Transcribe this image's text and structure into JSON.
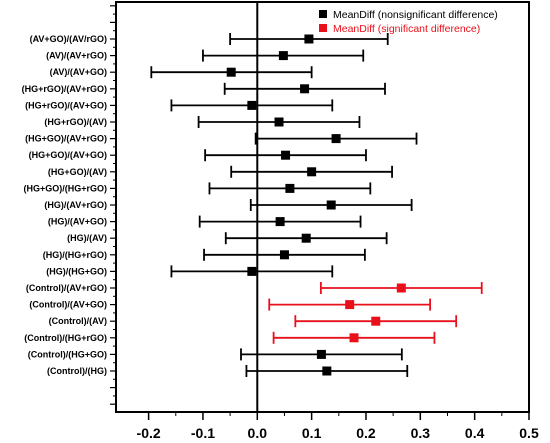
{
  "chart_data": {
    "type": "scatter",
    "subtype": "forest-plot",
    "title": "",
    "xlabel": "",
    "ylabel": "",
    "xlim": [
      -0.26,
      0.5
    ],
    "x_ticks": [
      -0.2,
      -0.1,
      0.0,
      0.1,
      0.2,
      0.3,
      0.4,
      0.5
    ],
    "x_tick_labels": [
      "-0.2",
      "-0.1",
      "0.0",
      "0.1",
      "0.2",
      "0.3",
      "0.4",
      "0.5"
    ],
    "zero_line": 0.0,
    "grid": false,
    "legend_position": "top-right",
    "legend": [
      {
        "key": "nonsig",
        "label": "MeanDiff (nonsignificant difference)",
        "color": "#000000"
      },
      {
        "key": "sig",
        "label": "MeanDiff (significant difference)",
        "color": "#e8111b"
      }
    ],
    "rows": [
      {
        "label": "(AV+GO)/(AV/rGO)",
        "mean": 0.095,
        "lower": -0.05,
        "upper": 0.24,
        "group": "nonsig"
      },
      {
        "label": "(AV)/(AV+rGO)",
        "mean": 0.048,
        "lower": -0.1,
        "upper": 0.195,
        "group": "nonsig"
      },
      {
        "label": "(AV)/(AV+GO)",
        "mean": -0.048,
        "lower": -0.195,
        "upper": 0.1,
        "group": "nonsig"
      },
      {
        "label": "(HG+rGO)/(AV+rGO)",
        "mean": 0.087,
        "lower": -0.06,
        "upper": 0.235,
        "group": "nonsig"
      },
      {
        "label": "(HG+rGO)/(AV+GO)",
        "mean": -0.01,
        "lower": -0.158,
        "upper": 0.138,
        "group": "nonsig"
      },
      {
        "label": "(HG+rGO)/(AV)",
        "mean": 0.04,
        "lower": -0.108,
        "upper": 0.188,
        "group": "nonsig"
      },
      {
        "label": "(HG+GO)/(AV+rGO)",
        "mean": 0.145,
        "lower": -0.003,
        "upper": 0.293,
        "group": "nonsig"
      },
      {
        "label": "(HG+GO)/(AV+GO)",
        "mean": 0.052,
        "lower": -0.096,
        "upper": 0.2,
        "group": "nonsig"
      },
      {
        "label": "(HG+GO)/(AV)",
        "mean": 0.1,
        "lower": -0.048,
        "upper": 0.248,
        "group": "nonsig"
      },
      {
        "label": "(HG+GO)/(HG+rGO)",
        "mean": 0.06,
        "lower": -0.088,
        "upper": 0.208,
        "group": "nonsig"
      },
      {
        "label": "(HG)/(AV+rGO)",
        "mean": 0.136,
        "lower": -0.012,
        "upper": 0.284,
        "group": "nonsig"
      },
      {
        "label": "(HG)/(AV+GO)",
        "mean": 0.042,
        "lower": -0.106,
        "upper": 0.19,
        "group": "nonsig"
      },
      {
        "label": "(HG)/(AV)",
        "mean": 0.09,
        "lower": -0.058,
        "upper": 0.238,
        "group": "nonsig"
      },
      {
        "label": "(HG)/(HG+rGO)",
        "mean": 0.05,
        "lower": -0.098,
        "upper": 0.198,
        "group": "nonsig"
      },
      {
        "label": "(HG)/(HG+GO)",
        "mean": -0.01,
        "lower": -0.158,
        "upper": 0.138,
        "group": "nonsig"
      },
      {
        "label": "(Control)/(AV+rGO)",
        "mean": 0.265,
        "lower": 0.117,
        "upper": 0.413,
        "group": "sig"
      },
      {
        "label": "(Control)/(AV+GO)",
        "mean": 0.17,
        "lower": 0.022,
        "upper": 0.318,
        "group": "sig"
      },
      {
        "label": "(Control)/(AV)",
        "mean": 0.218,
        "lower": 0.07,
        "upper": 0.366,
        "group": "sig"
      },
      {
        "label": "(Control)/(HG+rGO)",
        "mean": 0.178,
        "lower": 0.03,
        "upper": 0.326,
        "group": "sig"
      },
      {
        "label": "(Control)/(HG+GO)",
        "mean": 0.118,
        "lower": -0.03,
        "upper": 0.266,
        "group": "nonsig"
      },
      {
        "label": "(Control)/(HG)",
        "mean": 0.128,
        "lower": -0.02,
        "upper": 0.276,
        "group": "nonsig"
      }
    ]
  }
}
